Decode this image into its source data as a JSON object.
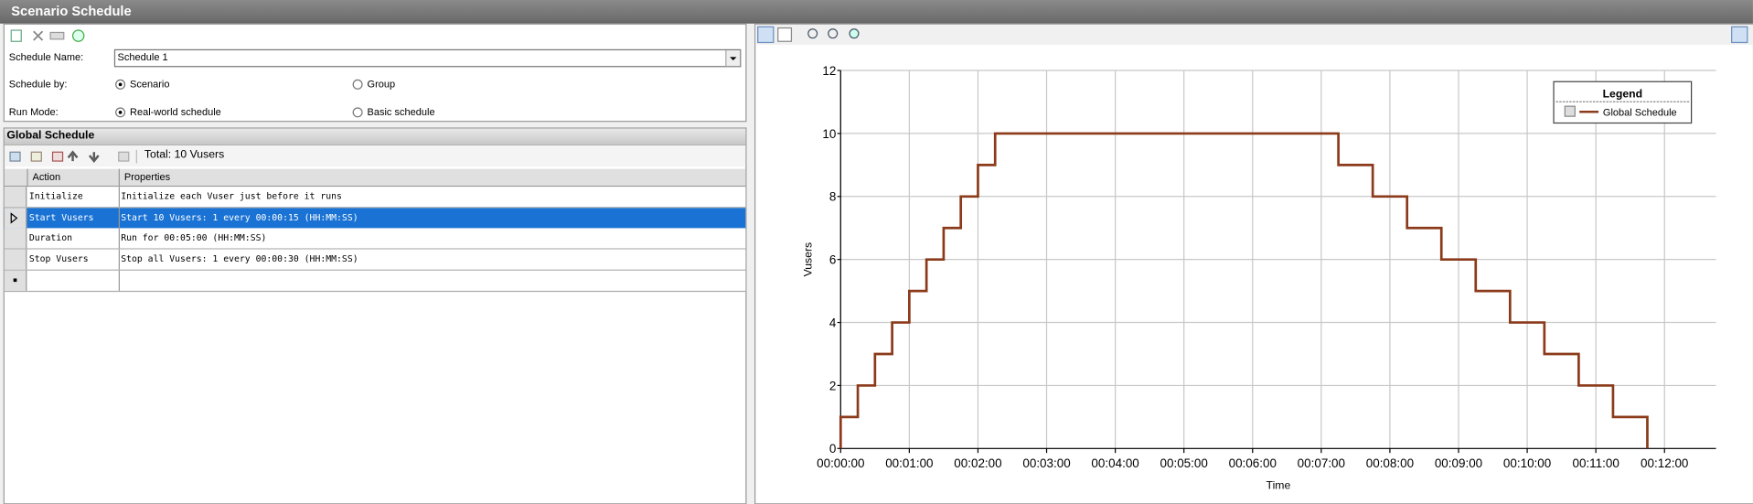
{
  "window": {
    "title": "Scenario Schedule"
  },
  "settings": {
    "schedule_name_label": "Schedule Name:",
    "schedule_name": "Schedule 1",
    "schedule_by_label": "Schedule by:",
    "schedule_by_options": [
      {
        "label": "Scenario",
        "checked": true
      },
      {
        "label": "Group",
        "checked": false
      }
    ],
    "run_mode_label": "Run Mode:",
    "run_mode_options": [
      {
        "label": "Real-world schedule",
        "checked": true
      },
      {
        "label": "Basic schedule",
        "checked": false
      }
    ]
  },
  "global_schedule": {
    "title": "Global Schedule",
    "total": "Total: 10 Vusers",
    "columns": [
      "Action",
      "Properties"
    ],
    "rows": [
      [
        "Initialize",
        "Initialize each Vuser just before it runs"
      ],
      [
        "Start  Vusers",
        "Start 10 Vusers: 1 every 00:00:15 (HH:MM:SS)"
      ],
      [
        "Duration",
        "Run for 00:05:00 (HH:MM:SS)"
      ],
      [
        "Stop Vusers",
        "Stop all Vusers: 1 every 00:00:30 (HH:MM:SS)"
      ]
    ],
    "selected_row": 1
  },
  "chart_data": {
    "type": "line",
    "x_label": "Time",
    "y_label": "Vusers",
    "legend_title": "Legend",
    "legend": "upper right",
    "grid": true,
    "x": [
      0,
      0,
      15,
      15,
      30,
      30,
      45,
      45,
      60,
      60,
      75,
      75,
      90,
      90,
      105,
      105,
      120,
      120,
      135,
      135,
      435,
      435,
      465,
      465,
      495,
      495,
      525,
      525,
      555,
      555,
      585,
      585,
      615,
      615,
      645,
      645,
      675,
      675,
      705,
      705
    ],
    "series": [
      {
        "name": "Global Schedule",
        "color": "#8b3a1a",
        "values": [
          0,
          1,
          1,
          2,
          2,
          3,
          3,
          4,
          4,
          5,
          5,
          6,
          6,
          7,
          7,
          8,
          8,
          9,
          9,
          10,
          10,
          9,
          9,
          8,
          8,
          7,
          7,
          6,
          6,
          5,
          5,
          4,
          4,
          3,
          3,
          2,
          2,
          1,
          1,
          0
        ]
      }
    ],
    "xlim": [
      0,
      765
    ],
    "xticks": [
      {
        "value": 0,
        "label": "00:00:00"
      },
      {
        "value": 60,
        "label": "00:01:00"
      },
      {
        "value": 120,
        "label": "00:02:00"
      },
      {
        "value": 180,
        "label": "00:03:00"
      },
      {
        "value": 240,
        "label": "00:04:00"
      },
      {
        "value": 300,
        "label": "00:05:00"
      },
      {
        "value": 360,
        "label": "00:06:00"
      },
      {
        "value": 420,
        "label": "00:07:00"
      },
      {
        "value": 480,
        "label": "00:08:00"
      },
      {
        "value": 540,
        "label": "00:09:00"
      },
      {
        "value": 600,
        "label": "00:10:00"
      },
      {
        "value": 660,
        "label": "00:11:00"
      },
      {
        "value": 720,
        "label": "00:12:00"
      }
    ],
    "ylim": [
      0,
      12
    ],
    "yticks": [
      0,
      2,
      4,
      6,
      8,
      10,
      12
    ]
  }
}
